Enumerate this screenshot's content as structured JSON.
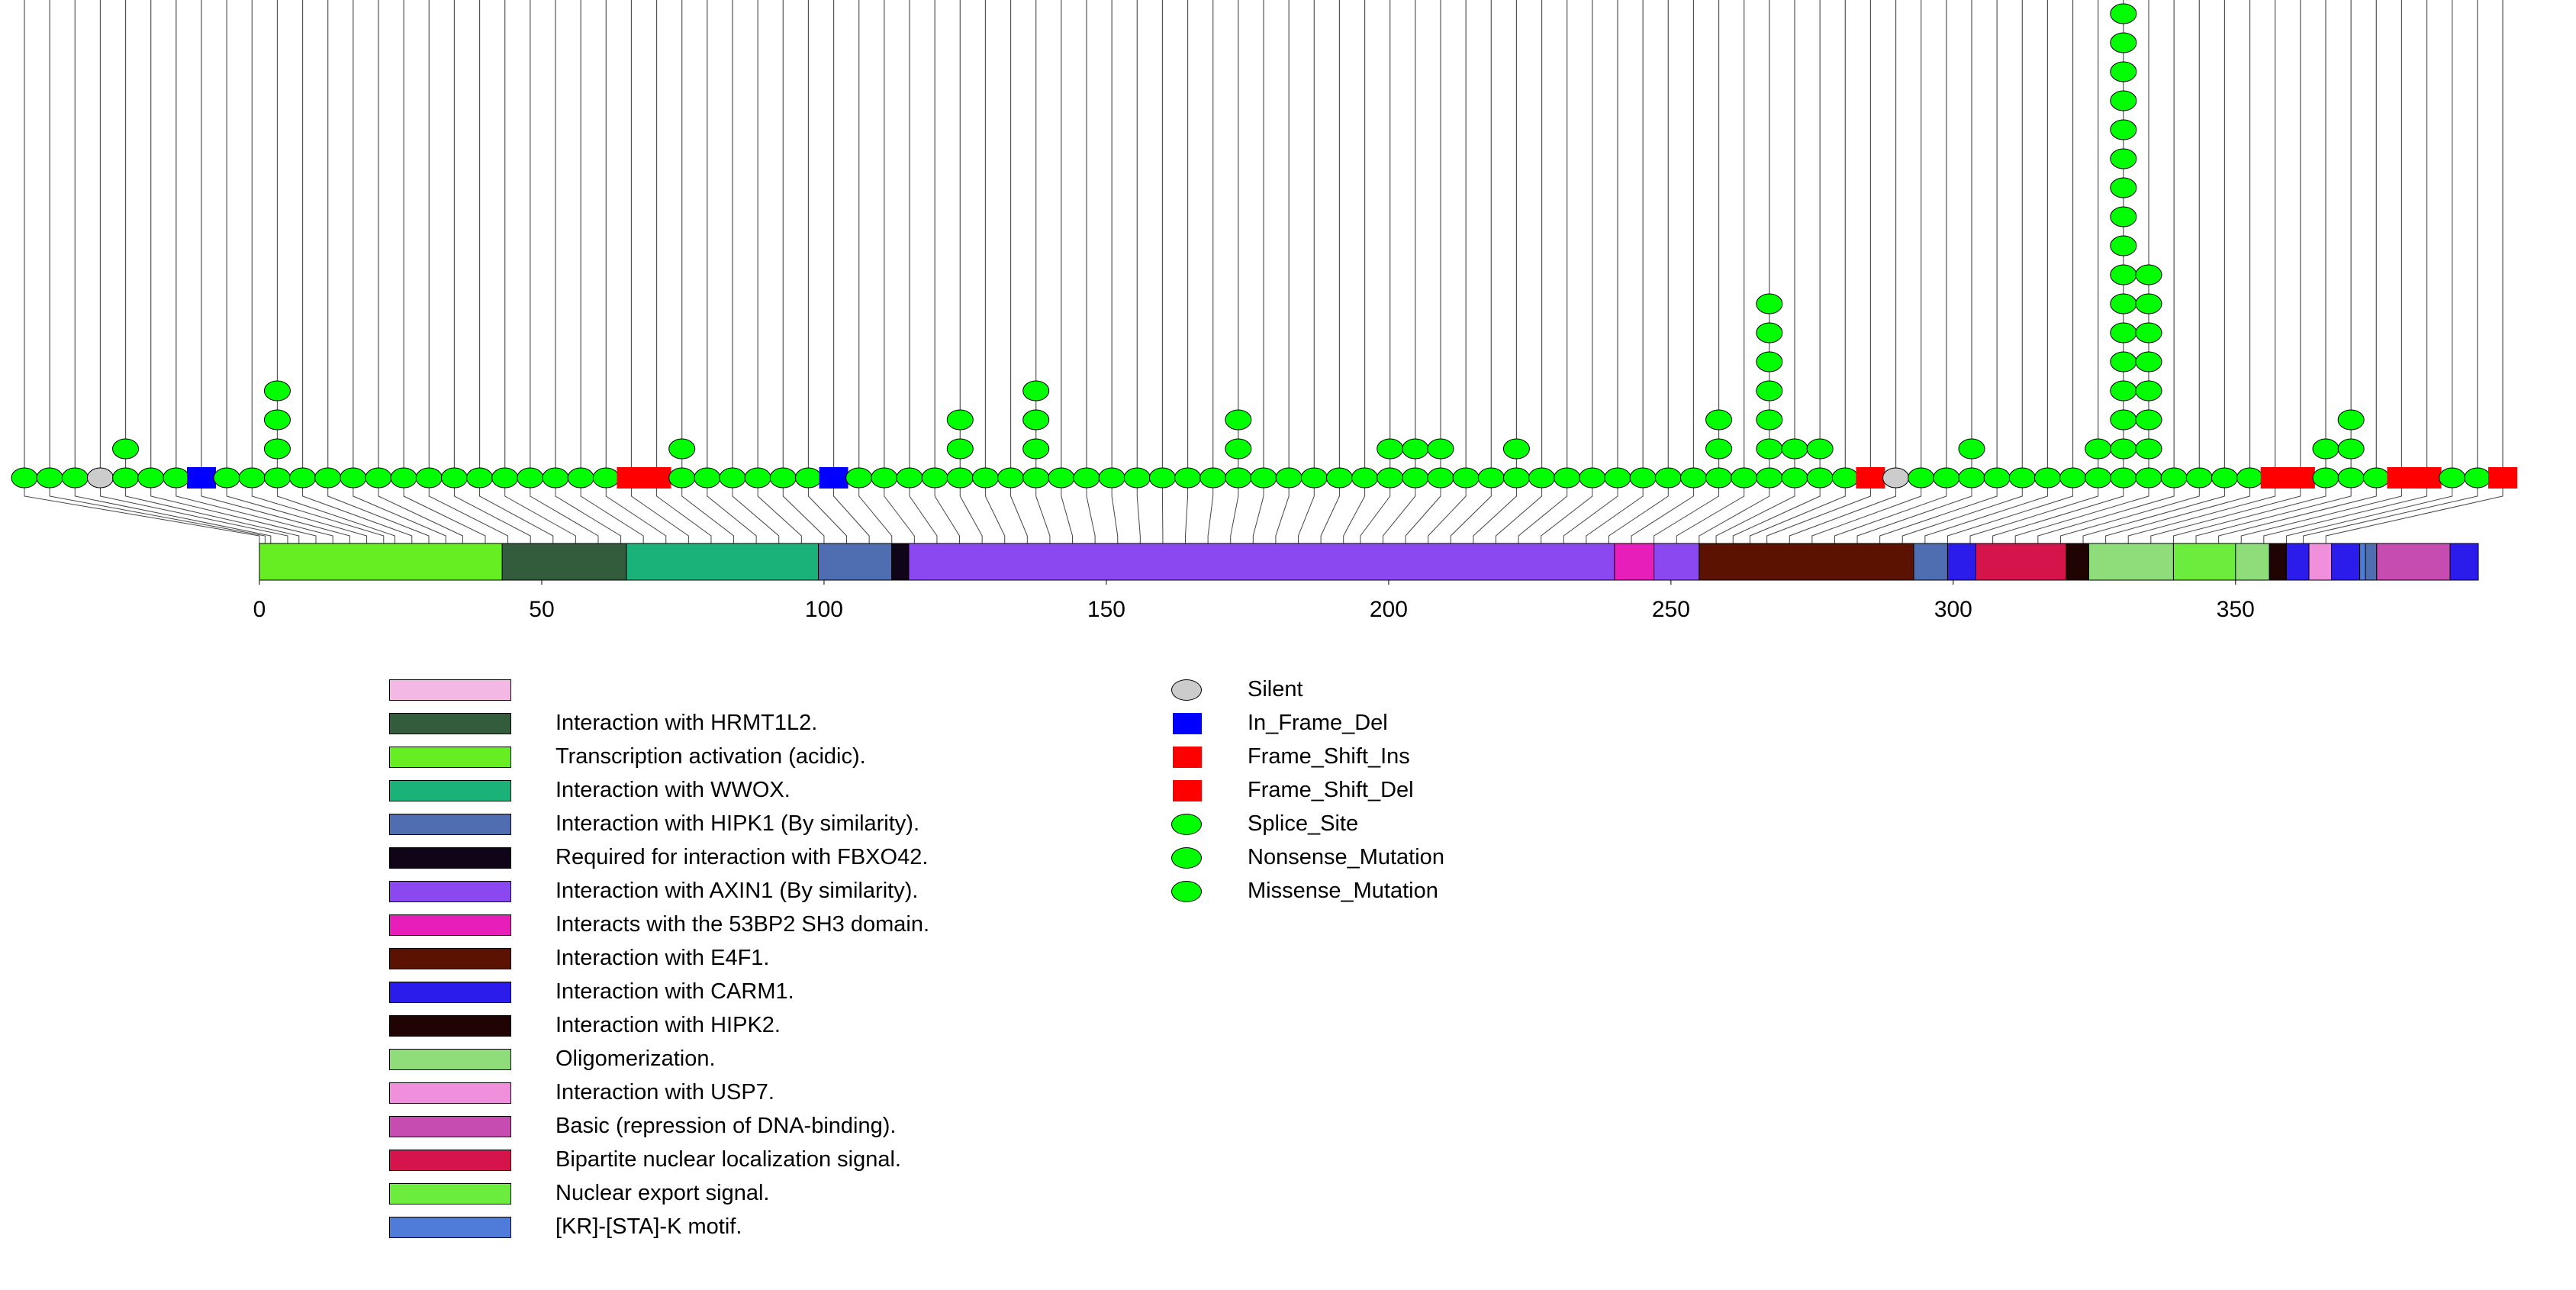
{
  "chart_data": {
    "type": "lollipop",
    "x_axis": {
      "min": 0,
      "max": 393,
      "ticks": [
        0,
        50,
        100,
        150,
        200,
        250,
        300,
        350
      ]
    },
    "protein_length": 393,
    "domains": [
      {
        "name": "Transcription activation (acidic).",
        "start": 0,
        "end": 43,
        "color": "#66EE22"
      },
      {
        "name": "Interaction with HRMT1L2.",
        "start": 43,
        "end": 65,
        "color": "#335C3C"
      },
      {
        "name": "Interaction with WWOX.",
        "start": 65,
        "end": 99,
        "color": "#1BB27A"
      },
      {
        "name": "Interaction with HIPK1 (By similarity).",
        "start": 99,
        "end": 112,
        "color": "#4F6DB1"
      },
      {
        "name": "Required for interaction with FBXO42.",
        "start": 112,
        "end": 115,
        "color": "#100418"
      },
      {
        "name": "Interaction with AXIN1 (By similarity).",
        "start": 115,
        "end": 240,
        "color": "#8C48F0"
      },
      {
        "name": "Interacts with the 53BP2 SH3 domain.",
        "start": 240,
        "end": 247,
        "color": "#E81EBB"
      },
      {
        "name": "Interaction with AXIN1 (By similarity).",
        "start": 247,
        "end": 255,
        "color": "#8C48F0"
      },
      {
        "name": "Interaction with E4F1.",
        "start": 255,
        "end": 293,
        "color": "#5B1200"
      },
      {
        "name": "Interaction with HIPK1 (By similarity).",
        "start": 293,
        "end": 299,
        "color": "#4F6DB1"
      },
      {
        "name": "Interaction with CARM1.",
        "start": 299,
        "end": 304,
        "color": "#2C1CEC"
      },
      {
        "name": "Bipartite nuclear localization signal.",
        "start": 304,
        "end": 320,
        "color": "#D6144C"
      },
      {
        "name": "Interaction with HIPK2.",
        "start": 320,
        "end": 324,
        "color": "#200404"
      },
      {
        "name": "Oligomerization.",
        "start": 324,
        "end": 339,
        "color": "#8EDC7A"
      },
      {
        "name": "Nuclear export signal.",
        "start": 339,
        "end": 350,
        "color": "#6CEC3C"
      },
      {
        "name": "Oligomerization.",
        "start": 350,
        "end": 356,
        "color": "#8EDC7A"
      },
      {
        "name": "Interaction with HIPK2.",
        "start": 356,
        "end": 359,
        "color": "#200404"
      },
      {
        "name": "Interaction with CARM1.",
        "start": 359,
        "end": 363,
        "color": "#2C1CEC"
      },
      {
        "name": "Interaction with USP7.",
        "start": 363,
        "end": 367,
        "color": "#F090DC"
      },
      {
        "name": "Interaction with CARM1.",
        "start": 367,
        "end": 372,
        "color": "#2C1CEC"
      },
      {
        "name": "[KR]-[STA]-K motif.",
        "start": 372,
        "end": 373,
        "color": "#4E7CD8"
      },
      {
        "name": "Interaction with HIPK1 (By similarity).",
        "start": 373,
        "end": 375,
        "color": "#4F6DB1"
      },
      {
        "name": "Basic (repression of DNA-binding).",
        "start": 375,
        "end": 388,
        "color": "#C64CB2"
      },
      {
        "name": "Interaction with CARM1.",
        "start": 388,
        "end": 393,
        "color": "#2C1CEC"
      }
    ],
    "legend_domains": [
      {
        "label": "",
        "color": "#F4B8E4"
      },
      {
        "label": "Interaction with HRMT1L2.",
        "color": "#335C3C"
      },
      {
        "label": "Transcription activation (acidic).",
        "color": "#66EE22"
      },
      {
        "label": "Interaction with WWOX.",
        "color": "#1BB27A"
      },
      {
        "label": "Interaction with HIPK1 (By similarity).",
        "color": "#4F6DB1"
      },
      {
        "label": "Required for interaction with FBXO42.",
        "color": "#100418"
      },
      {
        "label": "Interaction with AXIN1 (By similarity).",
        "color": "#8C48F0"
      },
      {
        "label": "Interacts with the 53BP2 SH3 domain.",
        "color": "#E81EBB"
      },
      {
        "label": "Interaction with E4F1.",
        "color": "#5B1200"
      },
      {
        "label": "Interaction with CARM1.",
        "color": "#2C1CEC"
      },
      {
        "label": "Interaction with HIPK2.",
        "color": "#200404"
      },
      {
        "label": "Oligomerization.",
        "color": "#8EDC7A"
      },
      {
        "label": "Interaction with USP7.",
        "color": "#F090DC"
      },
      {
        "label": "Basic (repression of DNA-binding).",
        "color": "#C64CB2"
      },
      {
        "label": "Bipartite nuclear localization signal.",
        "color": "#D6144C"
      },
      {
        "label": "Nuclear export signal.",
        "color": "#6CEC3C"
      },
      {
        "label": "[KR]-[STA]-K motif.",
        "color": "#4E7CD8"
      }
    ],
    "legend_mutations": [
      {
        "label": "Silent",
        "shape": "ellipse",
        "color": "#CCCCCC"
      },
      {
        "label": "In_Frame_Del",
        "shape": "rect",
        "color": "#0000FF"
      },
      {
        "label": "Frame_Shift_Ins",
        "shape": "rect",
        "color": "#FF0000"
      },
      {
        "label": "Frame_Shift_Del",
        "shape": "rect",
        "color": "#FF0000"
      },
      {
        "label": "Splice_Site",
        "shape": "ellipse",
        "color": "#00FF00"
      },
      {
        "label": "Nonsense_Mutation",
        "shape": "ellipse",
        "color": "#00FF00"
      },
      {
        "label": "Missense_Mutation",
        "shape": "ellipse",
        "color": "#00FF00"
      }
    ],
    "mutation_type_colors": {
      "Silent": "#CCCCCC",
      "In_Frame_Del": "#0000FF",
      "Frame_Shift_Ins": "#FF0000",
      "Frame_Shift_Del": "#FF0000",
      "Missense_Mutation": "#00FF00"
    },
    "lollipops": [
      {
        "type": "Missense_Mutation",
        "count": 1,
        "position": 0
      },
      {
        "type": "Missense_Mutation",
        "count": 1,
        "position": 1
      },
      {
        "type": "Missense_Mutation",
        "count": 1,
        "position": 2
      },
      {
        "type": "Silent",
        "count": 1,
        "position": 5
      },
      {
        "type": "Missense_Mutation",
        "count": 2,
        "position": 7
      },
      {
        "type": "Missense_Mutation",
        "count": 1,
        "position": 10
      },
      {
        "type": "Missense_Mutation",
        "count": 1,
        "position": 13
      },
      {
        "type": "In_Frame_Del",
        "count": 1,
        "position": 16
      },
      {
        "type": "Missense_Mutation",
        "count": 1,
        "position": 19
      },
      {
        "type": "Missense_Mutation",
        "count": 1,
        "position": 22
      },
      {
        "type": "Missense_Mutation",
        "count": 4,
        "position": 24
      },
      {
        "type": "Missense_Mutation",
        "count": 1,
        "position": 27
      },
      {
        "type": "Missense_Mutation",
        "count": 1,
        "position": 30
      },
      {
        "type": "Missense_Mutation",
        "count": 1,
        "position": 33
      },
      {
        "type": "Missense_Mutation",
        "count": 1,
        "position": 36
      },
      {
        "type": "Missense_Mutation",
        "count": 1,
        "position": 40
      },
      {
        "type": "Missense_Mutation",
        "count": 1,
        "position": 44
      },
      {
        "type": "Missense_Mutation",
        "count": 1,
        "position": 48
      },
      {
        "type": "Missense_Mutation",
        "count": 1,
        "position": 52
      },
      {
        "type": "Missense_Mutation",
        "count": 1,
        "position": 56
      },
      {
        "type": "Missense_Mutation",
        "count": 1,
        "position": 60
      },
      {
        "type": "Missense_Mutation",
        "count": 1,
        "position": 64
      },
      {
        "type": "Missense_Mutation",
        "count": 1,
        "position": 68
      },
      {
        "type": "Missense_Mutation",
        "count": 1,
        "position": 72
      },
      {
        "type": "Frame_Shift_Del",
        "count": 1,
        "position": 76
      },
      {
        "type": "Frame_Shift_Del",
        "count": 1,
        "position": 80
      },
      {
        "type": "Missense_Mutation",
        "count": 2,
        "position": 84
      },
      {
        "type": "Missense_Mutation",
        "count": 1,
        "position": 88
      },
      {
        "type": "Missense_Mutation",
        "count": 1,
        "position": 92
      },
      {
        "type": "Missense_Mutation",
        "count": 1,
        "position": 96
      },
      {
        "type": "Missense_Mutation",
        "count": 1,
        "position": 100
      },
      {
        "type": "Missense_Mutation",
        "count": 1,
        "position": 104
      },
      {
        "type": "In_Frame_Del",
        "count": 1,
        "position": 108
      },
      {
        "type": "Missense_Mutation",
        "count": 1,
        "position": 112
      },
      {
        "type": "Missense_Mutation",
        "count": 1,
        "position": 116
      },
      {
        "type": "Missense_Mutation",
        "count": 1,
        "position": 120
      },
      {
        "type": "Missense_Mutation",
        "count": 1,
        "position": 124
      },
      {
        "type": "Missense_Mutation",
        "count": 3,
        "position": 128
      },
      {
        "type": "Missense_Mutation",
        "count": 1,
        "position": 132
      },
      {
        "type": "Missense_Mutation",
        "count": 1,
        "position": 136
      },
      {
        "type": "Missense_Mutation",
        "count": 4,
        "position": 140
      },
      {
        "type": "Missense_Mutation",
        "count": 1,
        "position": 144
      },
      {
        "type": "Missense_Mutation",
        "count": 1,
        "position": 148
      },
      {
        "type": "Missense_Mutation",
        "count": 1,
        "position": 152
      },
      {
        "type": "Missense_Mutation",
        "count": 1,
        "position": 156
      },
      {
        "type": "Missense_Mutation",
        "count": 1,
        "position": 160
      },
      {
        "type": "Missense_Mutation",
        "count": 1,
        "position": 164
      },
      {
        "type": "Missense_Mutation",
        "count": 1,
        "position": 168
      },
      {
        "type": "Missense_Mutation",
        "count": 3,
        "position": 172
      },
      {
        "type": "Missense_Mutation",
        "count": 1,
        "position": 176
      },
      {
        "type": "Missense_Mutation",
        "count": 1,
        "position": 180
      },
      {
        "type": "Missense_Mutation",
        "count": 1,
        "position": 184
      },
      {
        "type": "Missense_Mutation",
        "count": 1,
        "position": 188
      },
      {
        "type": "Missense_Mutation",
        "count": 1,
        "position": 192
      },
      {
        "type": "Missense_Mutation",
        "count": 2,
        "position": 195
      },
      {
        "type": "Missense_Mutation",
        "count": 2,
        "position": 199
      },
      {
        "type": "Missense_Mutation",
        "count": 2,
        "position": 203
      },
      {
        "type": "Missense_Mutation",
        "count": 1,
        "position": 207
      },
      {
        "type": "Missense_Mutation",
        "count": 1,
        "position": 211
      },
      {
        "type": "Missense_Mutation",
        "count": 2,
        "position": 215
      },
      {
        "type": "Missense_Mutation",
        "count": 1,
        "position": 219
      },
      {
        "type": "Missense_Mutation",
        "count": 1,
        "position": 223
      },
      {
        "type": "Missense_Mutation",
        "count": 1,
        "position": 227
      },
      {
        "type": "Missense_Mutation",
        "count": 1,
        "position": 231
      },
      {
        "type": "Missense_Mutation",
        "count": 1,
        "position": 235
      },
      {
        "type": "Missense_Mutation",
        "count": 1,
        "position": 239
      },
      {
        "type": "Missense_Mutation",
        "count": 1,
        "position": 243
      },
      {
        "type": "Missense_Mutation",
        "count": 3,
        "position": 247
      },
      {
        "type": "Missense_Mutation",
        "count": 1,
        "position": 251
      },
      {
        "type": "Missense_Mutation",
        "count": 7,
        "position": 255
      },
      {
        "type": "Missense_Mutation",
        "count": 2,
        "position": 258
      },
      {
        "type": "Missense_Mutation",
        "count": 2,
        "position": 261
      },
      {
        "type": "Missense_Mutation",
        "count": 1,
        "position": 264
      },
      {
        "type": "Frame_Shift_Del",
        "count": 1,
        "position": 267
      },
      {
        "type": "Silent",
        "count": 1,
        "position": 271
      },
      {
        "type": "Missense_Mutation",
        "count": 1,
        "position": 275
      },
      {
        "type": "Missense_Mutation",
        "count": 1,
        "position": 279
      },
      {
        "type": "Missense_Mutation",
        "count": 2,
        "position": 283
      },
      {
        "type": "Missense_Mutation",
        "count": 1,
        "position": 287
      },
      {
        "type": "Missense_Mutation",
        "count": 1,
        "position": 291
      },
      {
        "type": "Missense_Mutation",
        "count": 1,
        "position": 295
      },
      {
        "type": "Missense_Mutation",
        "count": 1,
        "position": 299
      },
      {
        "type": "Missense_Mutation",
        "count": 2,
        "position": 303
      },
      {
        "type": "Missense_Mutation",
        "count": 17,
        "position": 307
      },
      {
        "type": "Missense_Mutation",
        "count": 8,
        "position": 311
      },
      {
        "type": "Missense_Mutation",
        "count": 1,
        "position": 315
      },
      {
        "type": "Missense_Mutation",
        "count": 1,
        "position": 319
      },
      {
        "type": "Missense_Mutation",
        "count": 1,
        "position": 323
      },
      {
        "type": "Missense_Mutation",
        "count": 1,
        "position": 327
      },
      {
        "type": "Frame_Shift_Del",
        "count": 1,
        "position": 331
      },
      {
        "type": "Frame_Shift_Del",
        "count": 1,
        "position": 335
      },
      {
        "type": "Missense_Mutation",
        "count": 2,
        "position": 339
      },
      {
        "type": "Missense_Mutation",
        "count": 3,
        "position": 343
      },
      {
        "type": "Missense_Mutation",
        "count": 1,
        "position": 347
      },
      {
        "type": "Frame_Shift_Del",
        "count": 1,
        "position": 351
      },
      {
        "type": "Frame_Shift_Del",
        "count": 1,
        "position": 355
      },
      {
        "type": "Missense_Mutation",
        "count": 1,
        "position": 359
      },
      {
        "type": "Missense_Mutation",
        "count": 1,
        "position": 362
      },
      {
        "type": "Frame_Shift_Del",
        "count": 1,
        "position": 366
      }
    ]
  }
}
